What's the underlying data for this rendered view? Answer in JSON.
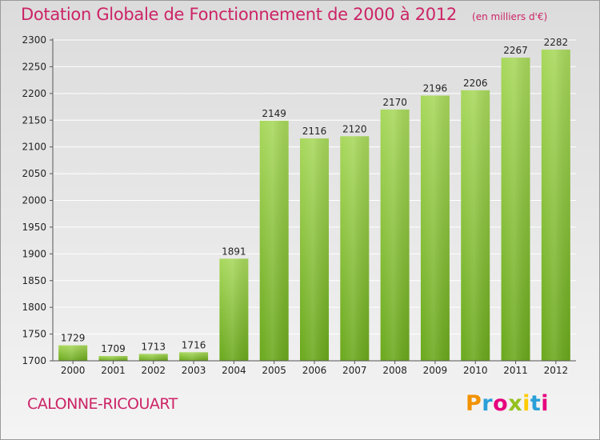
{
  "header": {
    "title": "Dotation Globale de Fonctionnement de 2000 à 2012",
    "subtitle": "(en milliers d'€)"
  },
  "footer": {
    "commune": "CALONNE-RICOUART",
    "logo": "Proxiti"
  },
  "colors": {
    "title": "#cc2466",
    "bar_light": "#a8d85c",
    "bar_dark": "#6aa81c"
  },
  "chart_data": {
    "type": "bar",
    "title": "Dotation Globale de Fonctionnement de 2000 à 2012",
    "subtitle": "(en milliers d'€)",
    "categories": [
      "2000",
      "2001",
      "2002",
      "2003",
      "2004",
      "2005",
      "2006",
      "2007",
      "2008",
      "2009",
      "2010",
      "2011",
      "2012"
    ],
    "values": [
      1729,
      1709,
      1713,
      1716,
      1891,
      2149,
      2116,
      2120,
      2170,
      2196,
      2206,
      2267,
      2282
    ],
    "ylim": [
      1700,
      2300
    ],
    "yticks": [
      1700,
      1750,
      1800,
      1850,
      1900,
      1950,
      2000,
      2050,
      2100,
      2150,
      2200,
      2250,
      2300
    ],
    "xlabel": "",
    "ylabel": "",
    "grid": true,
    "data_labels": true
  }
}
